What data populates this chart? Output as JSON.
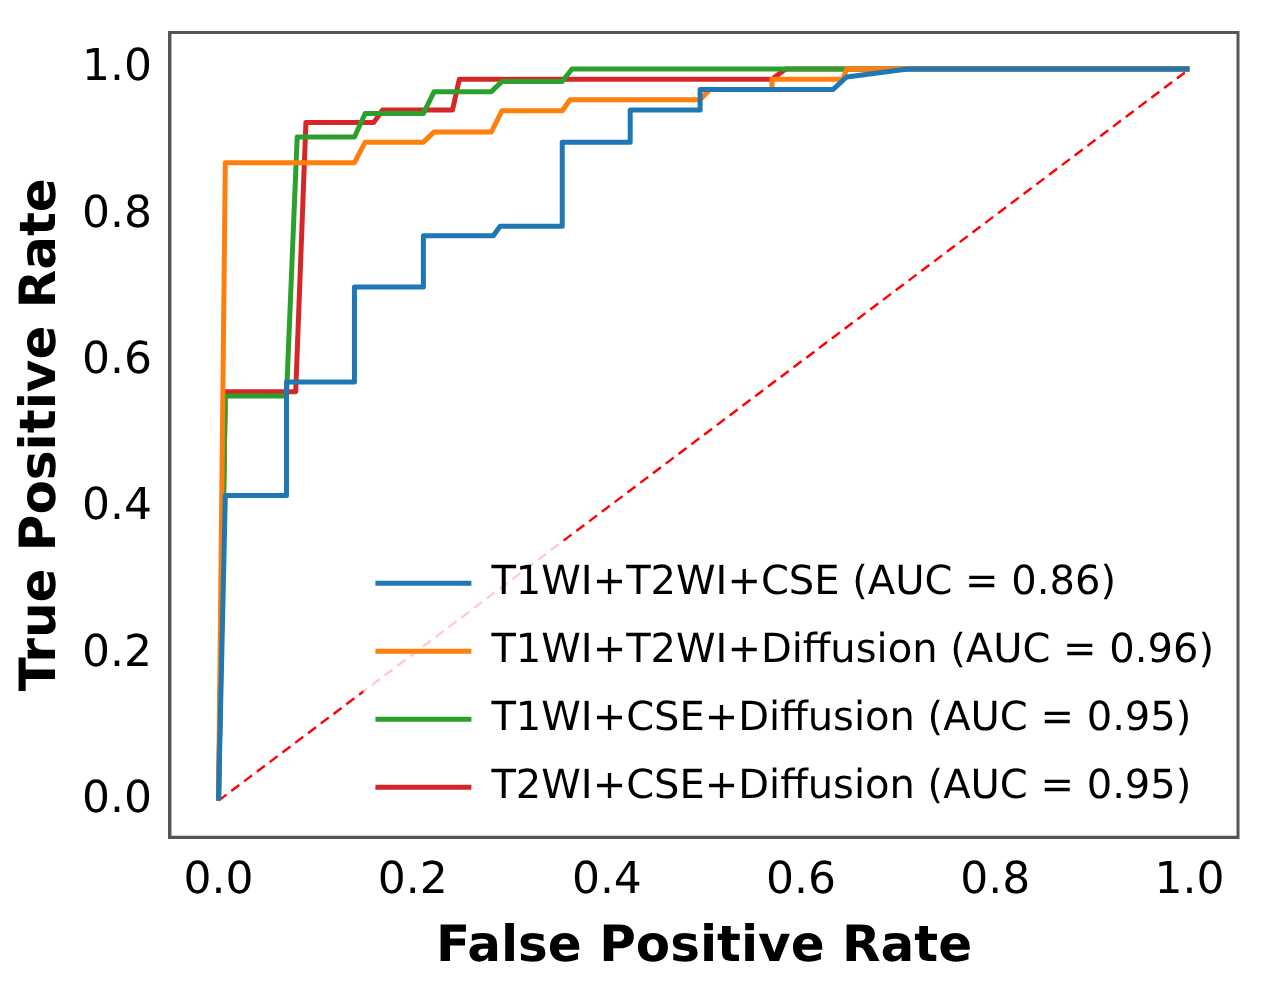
{
  "chart_data": {
    "type": "line",
    "xlabel": "False Positive Rate",
    "ylabel": "True Positive Rate",
    "xlim": [
      -0.05,
      1.05
    ],
    "ylim": [
      -0.05,
      1.05
    ],
    "xticks": [
      {
        "value": 0,
        "label": "0.0"
      },
      {
        "value": 0.2,
        "label": "0.2"
      },
      {
        "value": 0.4,
        "label": "0.4"
      },
      {
        "value": 0.6,
        "label": "0.6"
      },
      {
        "value": 0.8,
        "label": "0.8"
      },
      {
        "value": 1,
        "label": "1.0"
      }
    ],
    "yticks": [
      {
        "value": 0,
        "label": "0.0"
      },
      {
        "value": 0.2,
        "label": "0.2"
      },
      {
        "value": 0.4,
        "label": "0.4"
      },
      {
        "value": 0.6,
        "label": "0.6"
      },
      {
        "value": 0.8,
        "label": "0.8"
      },
      {
        "value": 1,
        "label": "1.0"
      }
    ],
    "grid": false,
    "legend": "lower right",
    "marker": "none",
    "line_style": "solid",
    "series": [
      {
        "name": "T1WI+T2WI+CSE (AUC = 0.86)",
        "color": "#1f77b4",
        "x": [
          0,
          0.007,
          0.07,
          0.07,
          0.14,
          0.14,
          0.211,
          0.211,
          0.283,
          0.29,
          0.354,
          0.354,
          0.424,
          0.424,
          0.496,
          0.496,
          0.633,
          0.647,
          0.71,
          1
        ],
        "values": [
          0,
          0.417,
          0.417,
          0.572,
          0.572,
          0.702,
          0.702,
          0.772,
          0.772,
          0.785,
          0.785,
          0.9,
          0.9,
          0.944,
          0.944,
          0.972,
          0.972,
          0.989,
          1,
          1
        ]
      },
      {
        "name": "T1WI+T2WI+Diffusion (AUC = 0.96)",
        "color": "#ff7f0e",
        "x": [
          0,
          0.007,
          0.14,
          0.151,
          0.211,
          0.222,
          0.281,
          0.292,
          0.354,
          0.362,
          0.496,
          0.506,
          0.57,
          0.57,
          0.643,
          0.647,
          1
        ],
        "values": [
          0,
          0.872,
          0.872,
          0.9,
          0.9,
          0.914,
          0.914,
          0.943,
          0.943,
          0.958,
          0.958,
          0.972,
          0.972,
          0.986,
          0.986,
          1,
          1
        ]
      },
      {
        "name": "T1WI+CSE+Diffusion (AUC = 0.95)",
        "color": "#2ca02c",
        "x": [
          0,
          0.007,
          0.07,
          0.081,
          0.14,
          0.151,
          0.211,
          0.222,
          0.281,
          0.292,
          0.354,
          0.364,
          1
        ],
        "values": [
          0,
          0.553,
          0.553,
          0.907,
          0.907,
          0.939,
          0.939,
          0.969,
          0.969,
          0.983,
          0.983,
          1,
          1
        ]
      },
      {
        "name": "T2WI+CSE+Diffusion (AUC = 0.95)",
        "color": "#d62728",
        "x": [
          0,
          0.007,
          0.0795,
          0.09,
          0.16,
          0.169,
          0.241,
          0.248,
          0.57,
          0.584,
          1
        ],
        "values": [
          0,
          0.559,
          0.559,
          0.927,
          0.927,
          0.944,
          0.944,
          0.986,
          0.986,
          1,
          1
        ]
      },
      {
        "color": "#ff0000",
        "line_style": "dashed",
        "x": [
          0,
          1
        ],
        "values": [
          0,
          1
        ]
      }
    ]
  }
}
